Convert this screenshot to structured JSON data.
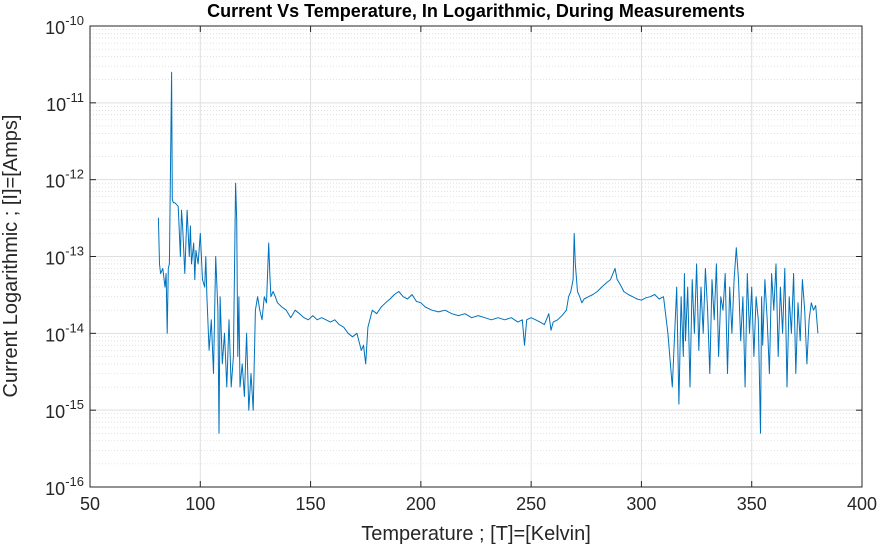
{
  "chart_data": {
    "type": "line",
    "title": "Current Vs Temperature, In Logarithmic, During Measurements",
    "xlabel": "Temperature ; [T]=[Kelvin]",
    "ylabel": "Current Logarithmic ; [I]=[Amps]",
    "xlim": [
      50,
      400
    ],
    "ylim": [
      1e-16,
      1e-10
    ],
    "yscale": "log",
    "grid": true,
    "minor_grid": true,
    "xticks": [
      "50",
      "100",
      "150",
      "200",
      "250",
      "300",
      "350",
      "400"
    ],
    "yticks": [
      {
        "base": "10",
        "exp": "-16"
      },
      {
        "base": "10",
        "exp": "-15"
      },
      {
        "base": "10",
        "exp": "-14"
      },
      {
        "base": "10",
        "exp": "-13"
      },
      {
        "base": "10",
        "exp": "-12"
      },
      {
        "base": "10",
        "exp": "-11"
      },
      {
        "base": "10",
        "exp": "-10"
      }
    ],
    "line_color": "#0072BD",
    "series": [
      {
        "x": [
          81,
          81.5,
          82,
          83,
          84,
          84.5,
          85,
          85.5,
          86,
          87,
          87.3,
          87.8,
          88.5,
          90,
          91,
          91.5,
          92,
          93,
          94,
          94.5,
          95,
          95.5,
          96,
          97,
          97.5,
          98,
          99,
          100,
          101,
          102,
          102.5,
          103,
          104,
          105,
          106,
          107,
          108,
          108.5,
          109,
          110,
          111,
          112,
          113,
          114,
          115,
          116,
          116.5,
          117,
          117.5,
          118,
          119,
          120,
          121,
          122,
          123,
          124,
          125,
          126,
          127,
          128,
          129,
          130,
          131,
          131.5,
          132,
          133,
          134,
          135,
          137,
          139,
          141,
          143,
          145,
          147,
          149,
          151,
          153,
          155,
          157,
          159,
          161,
          163,
          165,
          167,
          169,
          171,
          173,
          174,
          175,
          176,
          178,
          180,
          182,
          184,
          186,
          188,
          190,
          192,
          194,
          196,
          198,
          200,
          202,
          205,
          208,
          211,
          214,
          217,
          220,
          223,
          226,
          229,
          232,
          235,
          238,
          241,
          244,
          246,
          247,
          248,
          250,
          252,
          254,
          256,
          258,
          259,
          260,
          262,
          264,
          266,
          267,
          268,
          269,
          269.5,
          270,
          271,
          272,
          273,
          274,
          276,
          278,
          280,
          282,
          284,
          286,
          288,
          289,
          290,
          291,
          292,
          294,
          296,
          298,
          300,
          302,
          304,
          306,
          308,
          310,
          312,
          314,
          316,
          317,
          318,
          319,
          319.5,
          320,
          321,
          322,
          323,
          324,
          325,
          326,
          327,
          328,
          329,
          330,
          331,
          332,
          333,
          334,
          335,
          336,
          337,
          338,
          339,
          340,
          341,
          342,
          343,
          344,
          345,
          346,
          347,
          348,
          349,
          350,
          351,
          352,
          353,
          354,
          354.5,
          355,
          356,
          357,
          358,
          359,
          360,
          361,
          362,
          363,
          364,
          365,
          366,
          367,
          368,
          369,
          370,
          371,
          372,
          373,
          374,
          375,
          376,
          377,
          378,
          379,
          380
        ],
        "y": [
          3.2e-13,
          8e-14,
          6e-14,
          7e-14,
          4e-14,
          6e-14,
          1e-14,
          7e-14,
          8e-14,
          2.5e-11,
          5.5e-13,
          5e-13,
          5e-13,
          4.5e-13,
          1e-13,
          4e-13,
          2.5e-13,
          6e-14,
          4e-13,
          2e-13,
          1e-13,
          2.5e-13,
          8e-14,
          1.5e-13,
          5e-14,
          1.2e-13,
          8e-14,
          2e-13,
          5e-14,
          4e-14,
          1e-13,
          3e-14,
          6e-15,
          1.5e-14,
          3e-15,
          1e-13,
          2e-14,
          5e-16,
          3e-14,
          4e-15,
          1e-14,
          2e-15,
          1.5e-14,
          2e-15,
          5e-15,
          9e-13,
          3e-13,
          5e-15,
          3e-14,
          2e-15,
          4e-15,
          1.5e-15,
          1e-14,
          1e-15,
          3e-15,
          1e-15,
          2e-14,
          3e-14,
          2e-14,
          1.5e-14,
          3e-14,
          2.5e-14,
          1.5e-13,
          6e-14,
          3e-14,
          3.5e-14,
          3e-14,
          2.5e-14,
          2.2e-14,
          2e-14,
          1.6e-14,
          2e-14,
          1.8e-14,
          1.6e-14,
          1.5e-14,
          1.7e-14,
          1.5e-14,
          1.6e-14,
          1.5e-14,
          1.4e-14,
          1.5e-14,
          1.3e-14,
          1.2e-14,
          1e-14,
          9e-15,
          1e-14,
          6e-15,
          7e-15,
          4e-15,
          1.2e-14,
          2e-14,
          1.8e-14,
          2.2e-14,
          2.5e-14,
          2.8e-14,
          3.2e-14,
          3.5e-14,
          3e-14,
          2.8e-14,
          3.2e-14,
          2.6e-14,
          2.5e-14,
          2.2e-14,
          2e-14,
          1.9e-14,
          2e-14,
          1.8e-14,
          1.7e-14,
          1.8e-14,
          1.6e-14,
          1.7e-14,
          1.6e-14,
          1.5e-14,
          1.6e-14,
          1.5e-14,
          1.6e-14,
          1.4e-14,
          1.5e-14,
          7e-15,
          1.5e-14,
          1.6e-14,
          1.5e-14,
          1.4e-14,
          1.3e-14,
          1.8e-14,
          1.1e-14,
          1.4e-14,
          1.5e-14,
          1.7e-14,
          2e-14,
          3e-14,
          3.5e-14,
          5e-14,
          2e-13,
          8e-14,
          3.5e-14,
          3e-14,
          2.5e-14,
          2.8e-14,
          3e-14,
          3.2e-14,
          3.5e-14,
          4e-14,
          4.5e-14,
          5e-14,
          7e-14,
          5e-14,
          4.5e-14,
          4e-14,
          3.5e-14,
          3.2e-14,
          3e-14,
          2.8e-14,
          2.7e-14,
          2.9e-14,
          3e-14,
          3.2e-14,
          2.8e-14,
          3e-14,
          1e-14,
          2e-15,
          4e-14,
          1.2e-15,
          3e-14,
          5e-15,
          6e-14,
          8e-15,
          4e-14,
          2e-15,
          5e-14,
          1e-14,
          8e-14,
          6e-15,
          4e-14,
          1e-14,
          7e-14,
          2e-14,
          3e-15,
          5e-14,
          1.5e-14,
          8e-14,
          5e-15,
          3e-14,
          2e-14,
          6e-14,
          3e-15,
          4e-14,
          1e-14,
          5e-14,
          1.3e-13,
          5e-14,
          8e-15,
          3e-14,
          2e-15,
          6e-14,
          1e-14,
          4e-14,
          5e-15,
          3e-14,
          1.5e-14,
          5e-16,
          3e-14,
          7e-15,
          5e-14,
          1.5e-14,
          3e-15,
          6e-14,
          2e-14,
          8e-14,
          5e-15,
          4e-14,
          1e-14,
          7e-14,
          2e-15,
          3e-14,
          1e-14,
          6e-14,
          3e-15,
          2.5e-14,
          8e-15,
          5e-14,
          2e-14,
          4e-15,
          1.5e-14,
          2.5e-14,
          2e-14,
          2.3e-14,
          1e-14
        ]
      }
    ]
  }
}
